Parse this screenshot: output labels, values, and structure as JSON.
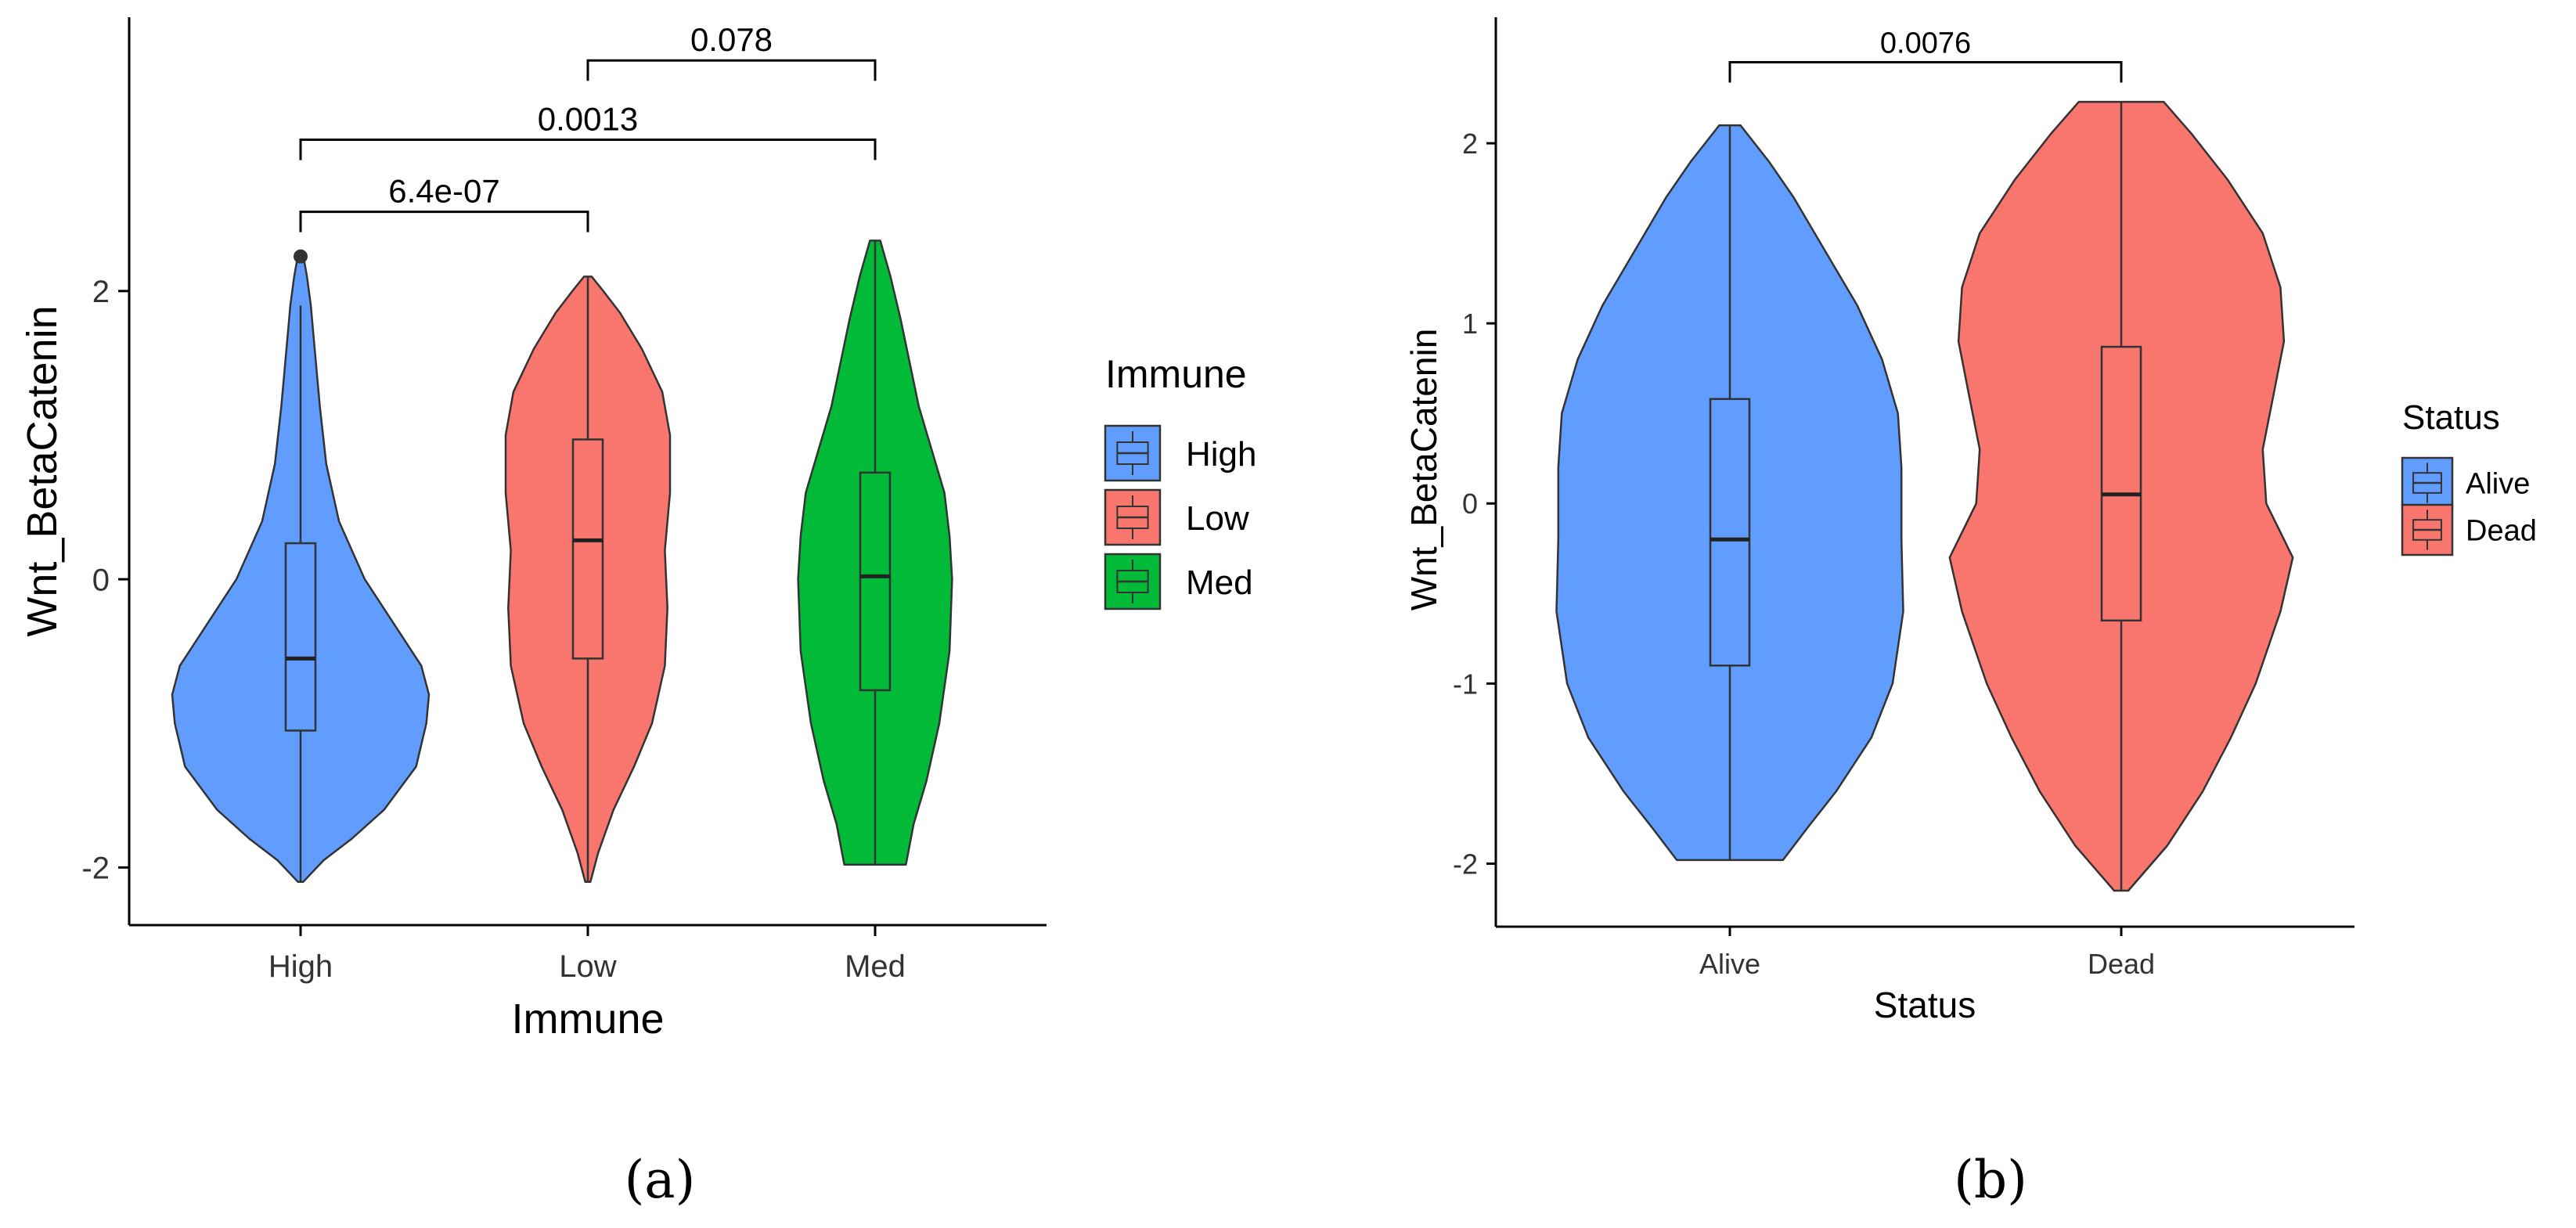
{
  "chart_data": [
    {
      "panel": "(a)",
      "type": "violin",
      "xlabel": "Immune",
      "ylabel": "Wnt_BetaCatenin",
      "ylim": [
        -2.4,
        3.9
      ],
      "yticks": [
        -2,
        0,
        2
      ],
      "ytick_labels": [
        "-2",
        "0",
        "2"
      ],
      "grid": false,
      "legend": {
        "title": "Immune",
        "placement": "right",
        "entries": [
          {
            "label": "High",
            "color": "#619CFF"
          },
          {
            "label": "Low",
            "color": "#F8766D"
          },
          {
            "label": "Med",
            "color": "#00BA38"
          }
        ]
      },
      "groups": [
        {
          "name": "High",
          "color": "#619CFF",
          "min": -2.1,
          "q1": -1.05,
          "median": -0.55,
          "q3": 0.25,
          "whisker_high": 1.9,
          "max": 2.25,
          "outliers": [
            2.24
          ],
          "density": [
            [
              -2.1,
              0.02
            ],
            [
              -1.95,
              0.18
            ],
            [
              -1.8,
              0.4
            ],
            [
              -1.6,
              0.65
            ],
            [
              -1.3,
              0.9
            ],
            [
              -1.0,
              0.98
            ],
            [
              -0.8,
              1.0
            ],
            [
              -0.6,
              0.94
            ],
            [
              -0.3,
              0.72
            ],
            [
              0.0,
              0.5
            ],
            [
              0.4,
              0.3
            ],
            [
              0.8,
              0.2
            ],
            [
              1.2,
              0.15
            ],
            [
              1.6,
              0.11
            ],
            [
              1.9,
              0.08
            ],
            [
              2.1,
              0.05
            ],
            [
              2.25,
              0.02
            ]
          ]
        },
        {
          "name": "Low",
          "color": "#F8766D",
          "min": -2.1,
          "q1": -0.55,
          "median": 0.27,
          "q3": 0.97,
          "whisker_high": 2.1,
          "max": 2.1,
          "outliers": [],
          "density": [
            [
              -2.1,
              0.02
            ],
            [
              -1.9,
              0.08
            ],
            [
              -1.6,
              0.2
            ],
            [
              -1.3,
              0.36
            ],
            [
              -1.0,
              0.5
            ],
            [
              -0.6,
              0.6
            ],
            [
              -0.2,
              0.62
            ],
            [
              0.2,
              0.6
            ],
            [
              0.6,
              0.64
            ],
            [
              1.0,
              0.64
            ],
            [
              1.3,
              0.58
            ],
            [
              1.6,
              0.42
            ],
            [
              1.85,
              0.25
            ],
            [
              2.0,
              0.12
            ],
            [
              2.1,
              0.03
            ]
          ]
        },
        {
          "name": "Med",
          "color": "#00BA38",
          "min": -1.98,
          "q1": -0.77,
          "median": 0.02,
          "q3": 0.74,
          "whisker_high": 2.35,
          "max": 2.35,
          "outliers": [],
          "density": [
            [
              -1.98,
              0.24
            ],
            [
              -1.7,
              0.3
            ],
            [
              -1.4,
              0.4
            ],
            [
              -1.0,
              0.5
            ],
            [
              -0.5,
              0.58
            ],
            [
              0.0,
              0.6
            ],
            [
              0.3,
              0.58
            ],
            [
              0.6,
              0.54
            ],
            [
              0.9,
              0.44
            ],
            [
              1.2,
              0.34
            ],
            [
              1.5,
              0.27
            ],
            [
              1.8,
              0.2
            ],
            [
              2.1,
              0.12
            ],
            [
              2.35,
              0.04
            ]
          ]
        }
      ],
      "comparisons": [
        {
          "from": "High",
          "to": "Low",
          "y": 2.55,
          "label": "6.4e-07"
        },
        {
          "from": "High",
          "to": "Med",
          "y": 3.05,
          "label": "0.0013"
        },
        {
          "from": "Low",
          "to": "Med",
          "y": 3.6,
          "label": "0.078"
        }
      ]
    },
    {
      "panel": "(b)",
      "type": "violin",
      "xlabel": "Status",
      "ylabel": "Wnt_BetaCatenin",
      "ylim": [
        -2.35,
        2.7
      ],
      "yticks": [
        -2,
        -1,
        0,
        1,
        2
      ],
      "ytick_labels": [
        "-2",
        "-1",
        "0",
        "1",
        "2"
      ],
      "grid": false,
      "legend": {
        "title": "Status",
        "placement": "right",
        "entries": [
          {
            "label": "Alive",
            "color": "#619CFF"
          },
          {
            "label": "Dead",
            "color": "#F8766D"
          }
        ]
      },
      "groups": [
        {
          "name": "Alive",
          "color": "#619CFF",
          "min": -1.98,
          "q1": -0.9,
          "median": -0.2,
          "q3": 0.58,
          "whisker_high": 2.1,
          "max": 2.1,
          "outliers": [],
          "density": [
            [
              -1.98,
              0.3
            ],
            [
              -1.8,
              0.44
            ],
            [
              -1.6,
              0.6
            ],
            [
              -1.3,
              0.8
            ],
            [
              -1.0,
              0.92
            ],
            [
              -0.6,
              0.98
            ],
            [
              -0.2,
              0.97
            ],
            [
              0.2,
              0.97
            ],
            [
              0.5,
              0.95
            ],
            [
              0.8,
              0.86
            ],
            [
              1.1,
              0.72
            ],
            [
              1.4,
              0.54
            ],
            [
              1.7,
              0.36
            ],
            [
              1.9,
              0.22
            ],
            [
              2.1,
              0.06
            ]
          ]
        },
        {
          "name": "Dead",
          "color": "#F8766D",
          "min": -2.15,
          "q1": -0.65,
          "median": 0.05,
          "q3": 0.87,
          "whisker_high": 2.23,
          "max": 2.23,
          "outliers": [],
          "density": [
            [
              -2.15,
              0.04
            ],
            [
              -1.9,
              0.26
            ],
            [
              -1.6,
              0.46
            ],
            [
              -1.3,
              0.62
            ],
            [
              -1.0,
              0.76
            ],
            [
              -0.6,
              0.9
            ],
            [
              -0.3,
              0.97
            ],
            [
              0.0,
              0.82
            ],
            [
              0.3,
              0.8
            ],
            [
              0.6,
              0.86
            ],
            [
              0.9,
              0.92
            ],
            [
              1.2,
              0.9
            ],
            [
              1.5,
              0.8
            ],
            [
              1.8,
              0.6
            ],
            [
              2.05,
              0.4
            ],
            [
              2.23,
              0.24
            ]
          ]
        }
      ],
      "comparisons": [
        {
          "from": "Alive",
          "to": "Dead",
          "y": 2.45,
          "label": "0.0076"
        }
      ]
    }
  ]
}
